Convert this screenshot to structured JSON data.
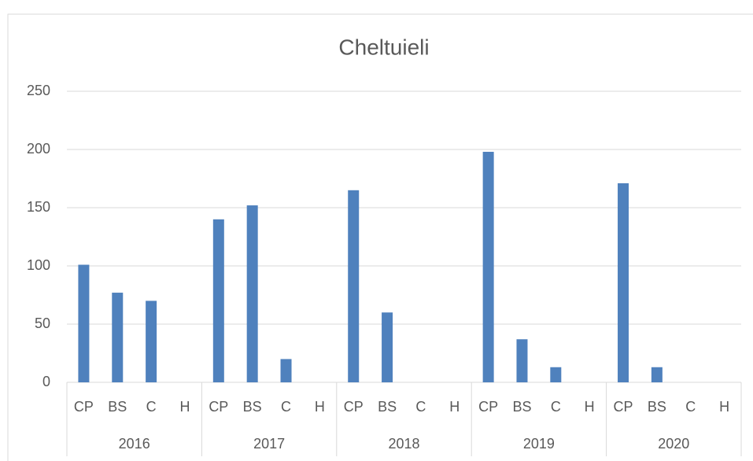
{
  "chart_data": {
    "type": "bar",
    "title": "Cheltuieli",
    "categories": [
      "CP",
      "BS",
      "C",
      "H",
      "CP",
      "BS",
      "C",
      "H",
      "CP",
      "BS",
      "C",
      "H",
      "CP",
      "BS",
      "C",
      "H",
      "CP",
      "BS",
      "C",
      "H"
    ],
    "groups": [
      "2016",
      "2017",
      "2018",
      "2019",
      "2020"
    ],
    "values": [
      101,
      77,
      70,
      0,
      140,
      152,
      20,
      0,
      165,
      60,
      0,
      0,
      198,
      37,
      13,
      0,
      171,
      13,
      0,
      0
    ],
    "color": "#4f81bd",
    "ylim": [
      0,
      250
    ],
    "yticks": [
      0,
      50,
      100,
      150,
      200,
      250
    ],
    "grid": true
  }
}
